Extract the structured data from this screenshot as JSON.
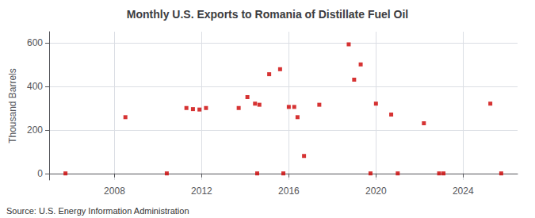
{
  "chart_data": {
    "type": "scatter",
    "title": "Monthly U.S. Exports to Romania of Distillate Fuel Oil",
    "ylabel": "Thousand Barrels",
    "annotation": "Source: U.S. Energy Information Administration",
    "color": "#cc0000",
    "marker": "square",
    "grid": true,
    "xlim": [
      2005.0,
      2026.5
    ],
    "xticks": [
      2008,
      2012,
      2016,
      2020,
      2024
    ],
    "ylim": [
      -30,
      650
    ],
    "yticks": [
      0,
      200,
      400,
      600
    ],
    "x": [
      2005.75,
      2008.5,
      2010.4,
      2011.3,
      2011.6,
      2011.9,
      2012.2,
      2013.7,
      2014.1,
      2014.45,
      2014.65,
      2014.55,
      2015.1,
      2015.6,
      2015.75,
      2016.0,
      2016.25,
      2016.4,
      2016.7,
      2017.4,
      2018.75,
      2019.0,
      2019.3,
      2019.75,
      2020.0,
      2020.7,
      2021.0,
      2022.2,
      2022.9,
      2023.1,
      2025.25,
      2025.75
    ],
    "values": [
      0,
      258,
      0,
      300,
      295,
      293,
      300,
      300,
      350,
      320,
      315,
      0,
      455,
      478,
      0,
      305,
      305,
      258,
      80,
      315,
      592,
      430,
      500,
      0,
      320,
      270,
      0,
      230,
      0,
      0,
      320,
      0
    ]
  }
}
